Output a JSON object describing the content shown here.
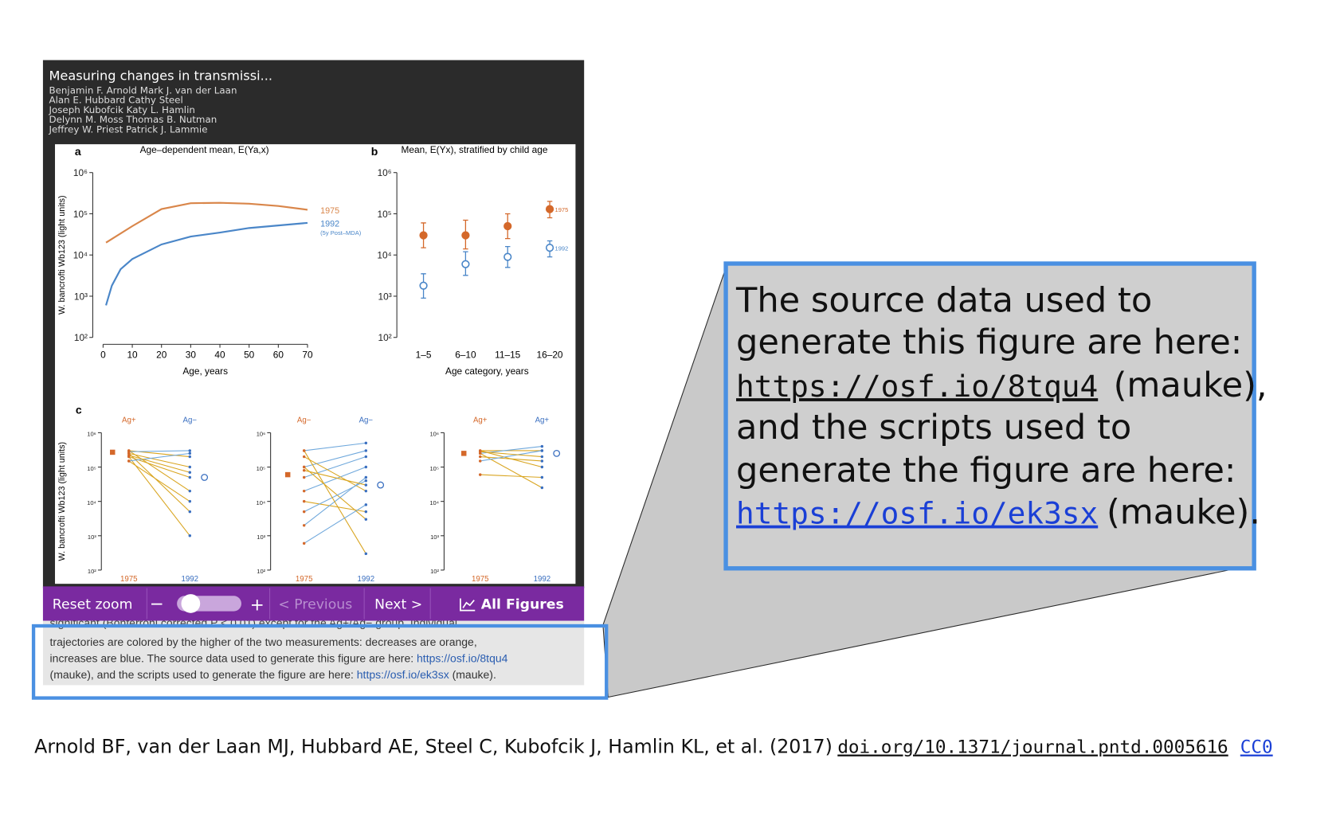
{
  "viewer": {
    "title": "Measuring changes in transmissi...",
    "authors": [
      "Benjamin F. Arnold  Mark J. van der Laan",
      "Alan E. Hubbard  Cathy Steel",
      "Joseph Kubofcik  Katy L. Hamlin",
      "Delynn M. Moss  Thomas B. Nutman",
      "Jeffrey W. Priest  Patrick J. Lammie"
    ],
    "toolbar": {
      "reset": "Reset zoom",
      "zoom_out": "−",
      "zoom_in": "+",
      "previous": "< Previous",
      "next": "Next >",
      "all_figures": "All Figures"
    }
  },
  "figure": {
    "panel_a": {
      "type": "line",
      "label": "a",
      "title": "Age–dependent mean, E(Ya,x)",
      "y_label": "W. bancrofti Wb123 (light units)",
      "x_label": "Age, years",
      "log_y": true,
      "ylim": [
        100,
        1000000
      ],
      "yticks": [
        {
          "value": 100,
          "label": "10²"
        },
        {
          "value": 1000,
          "label": "10³"
        },
        {
          "value": 10000,
          "label": "10⁴"
        },
        {
          "value": 100000,
          "label": "10⁵"
        },
        {
          "value": 1000000,
          "label": "10⁶"
        }
      ],
      "xlim": [
        0,
        70
      ],
      "xticks": [
        0,
        10,
        20,
        30,
        40,
        50,
        60,
        70
      ],
      "series": [
        {
          "name": "1975",
          "color": "#d9864a",
          "x": [
            1,
            10,
            20,
            30,
            40,
            50,
            60,
            70
          ],
          "values": [
            20000,
            50000,
            130000,
            180000,
            185000,
            175000,
            155000,
            125000
          ]
        },
        {
          "name": "1992",
          "sublabel": "(5y Post–MDA)",
          "color": "#4a86c8",
          "x": [
            1,
            3,
            6,
            10,
            20,
            30,
            40,
            50,
            60,
            70
          ],
          "values": [
            600,
            1800,
            4500,
            8000,
            18000,
            28000,
            35000,
            45000,
            52000,
            60000
          ]
        }
      ]
    },
    "panel_b": {
      "type": "errorbar",
      "label": "b",
      "title": "Mean, E(Yx), stratified by child age",
      "x_label": "Age category, years",
      "log_y": true,
      "ylim": [
        100,
        1000000
      ],
      "yticks": [
        {
          "value": 100,
          "label": "10²"
        },
        {
          "value": 1000,
          "label": "10³"
        },
        {
          "value": 10000,
          "label": "10⁴"
        },
        {
          "value": 100000,
          "label": "10⁵"
        },
        {
          "value": 1000000,
          "label": "10⁶"
        }
      ],
      "categories": [
        "1–5",
        "6–10",
        "11–15",
        "16–20"
      ],
      "series": [
        {
          "name": "1975",
          "color": "#d4682a",
          "marker": "filled",
          "values": [
            30000,
            30000,
            50000,
            130000
          ],
          "lower": [
            15000,
            14000,
            25000,
            80000
          ],
          "upper": [
            60000,
            70000,
            100000,
            200000
          ]
        },
        {
          "name": "1992",
          "color": "#4a86c8",
          "marker": "open",
          "values": [
            1800,
            6000,
            9000,
            15000
          ],
          "lower": [
            900,
            3200,
            5000,
            9000
          ],
          "upper": [
            3500,
            12000,
            16000,
            22000
          ]
        }
      ]
    },
    "panel_c": {
      "type": "slope",
      "label": "c",
      "y_label": "W. bancrofti Wb123 (light units)",
      "log_y": true,
      "ylim": [
        100,
        1000000
      ],
      "yticks": [
        {
          "value": 100,
          "label": "10²"
        },
        {
          "value": 1000,
          "label": "10³"
        },
        {
          "value": 10000,
          "label": "10⁴"
        },
        {
          "value": 100000,
          "label": "10⁵"
        },
        {
          "value": 1000000,
          "label": "10⁶"
        }
      ],
      "colors": {
        "decrease": "#d9a520",
        "increase": "#6fa8dc",
        "1975": "#d4682a",
        "1992": "#3a6fc0"
      },
      "panels": [
        {
          "top_left": "Ag+",
          "top_right": "Ag−",
          "bottom_left": "1975",
          "bottom_right": "1992",
          "pairs": [
            [
              300000,
              200000
            ],
            [
              250000,
              100000
            ],
            [
              200000,
              50000
            ],
            [
              300000,
              20000
            ],
            [
              150000,
              10000
            ],
            [
              250000,
              5000
            ],
            [
              200000,
              1000
            ],
            [
              280000,
              300000
            ],
            [
              150000,
              250000
            ],
            [
              220000,
              70000
            ]
          ],
          "mean_1975": 270000,
          "mean_1992": 50000
        },
        {
          "top_left": "Ag−",
          "top_right": "Ag−",
          "bottom_left": "1975",
          "bottom_right": "1992",
          "pairs": [
            [
              300000,
              500000
            ],
            [
              100000,
              300000
            ],
            [
              50000,
              200000
            ],
            [
              20000,
              100000
            ],
            [
              10000,
              5000
            ],
            [
              200000,
              20000
            ],
            [
              100000,
              3000
            ],
            [
              5000,
              40000
            ],
            [
              2000,
              50000
            ],
            [
              300000,
              300
            ],
            [
              80000,
              30000
            ],
            [
              600,
              8000
            ]
          ],
          "mean_1975": 60000,
          "mean_1992": 30000
        },
        {
          "top_left": "Ag+",
          "top_right": "Ag+",
          "bottom_left": "1975",
          "bottom_right": "1992",
          "pairs": [
            [
              300000,
              300000
            ],
            [
              250000,
              400000
            ],
            [
              200000,
              150000
            ],
            [
              300000,
              100000
            ],
            [
              60000,
              50000
            ],
            [
              250000,
              25000
            ],
            [
              150000,
              300000
            ],
            [
              280000,
              200000
            ]
          ],
          "mean_1975": 250000,
          "mean_1992": 250000
        }
      ]
    }
  },
  "caption": {
    "line0": "significant (Bonferroni corrected P < 0.01) except for the Ag+/Ag− group. Individual",
    "line1": "trajectories are colored by the higher of the two measurements: decreases are orange,",
    "line2": "increases are blue. The source data used to generate this figure are here: ",
    "link1": "https://osf.io/8tqu4",
    "line3": "(mauke), and the scripts used to generate the figure are here: ",
    "link2": "https://osf.io/ek3sx",
    "line3_end": " (mauke)."
  },
  "callout": {
    "line1": "The source data used to",
    "line2": "generate this figure are here:",
    "link1": "https://osf.io/8tqu4",
    "link1_after": "(mauke),",
    "line4": "and the scripts used to",
    "line5": "generate the figure are here:",
    "link2": "https://osf.io/ek3sx",
    "link2_after": "(mauke)."
  },
  "citation": {
    "text": "Arnold BF, van der Laan MJ, Hubbard AE, Steel C, Kubofcik J, Hamlin KL, et al. (2017)",
    "doi": "doi.org/10.1371/journal.pntd.0005616",
    "license": "CC0"
  }
}
